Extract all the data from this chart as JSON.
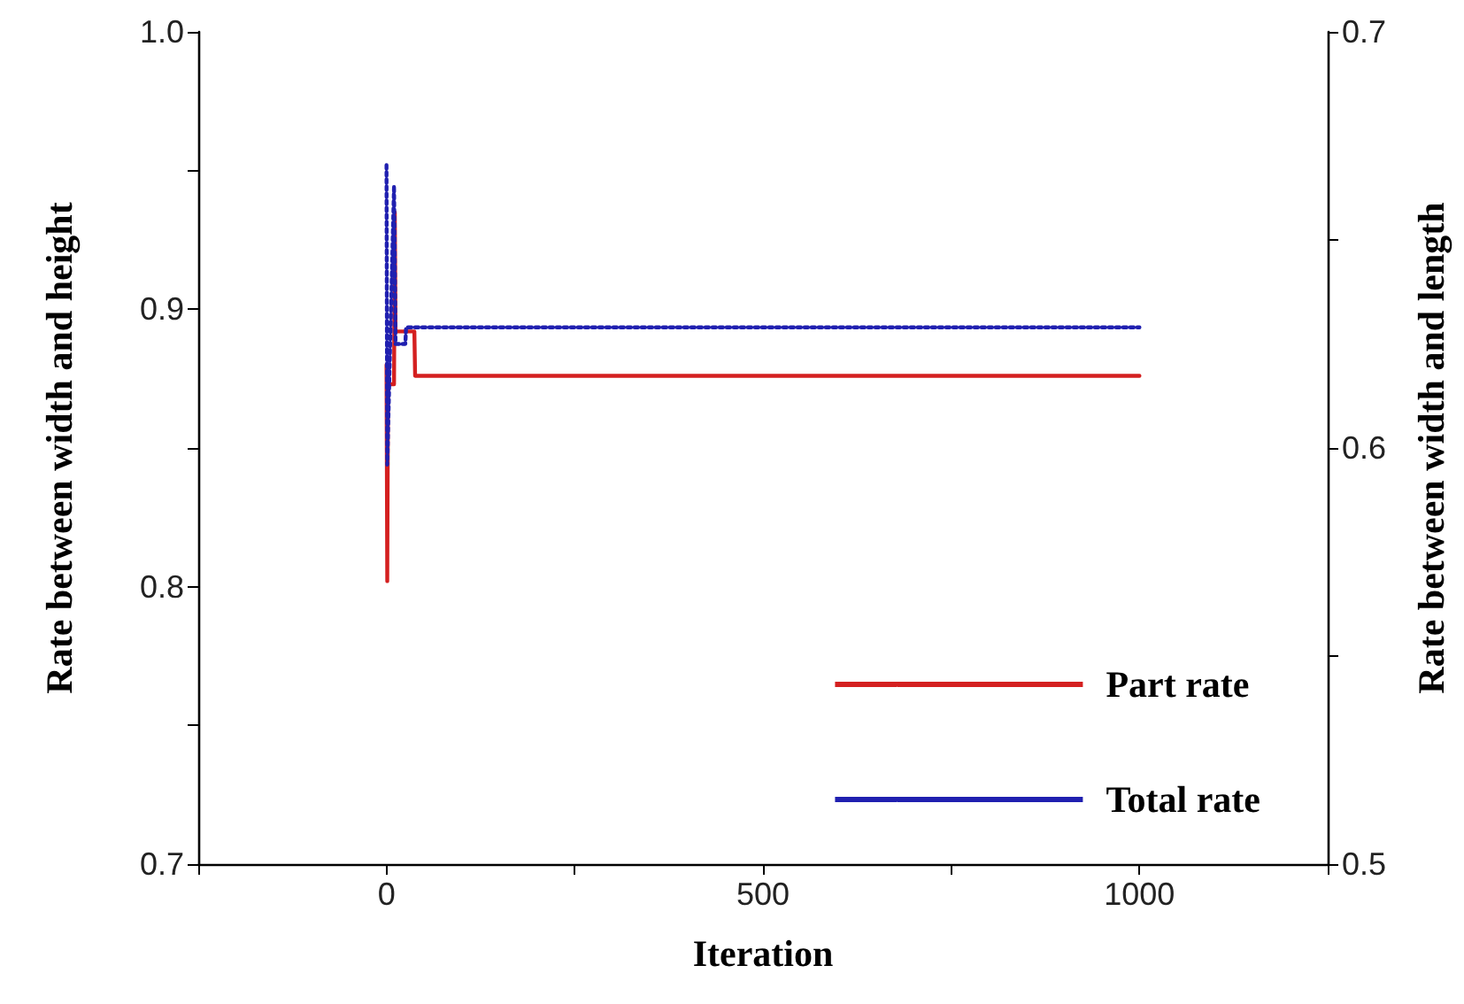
{
  "chart_data": {
    "type": "line",
    "xlabel": "Iteration",
    "ylabel": "Rate between width and height",
    "y2label": "Rate between width and length",
    "xlim": [
      -250,
      1250
    ],
    "xticks": [
      {
        "value": -250,
        "label": null
      },
      0,
      {
        "value": 250,
        "label": null
      },
      500,
      {
        "value": 750,
        "label": null
      },
      1000,
      {
        "value": 1250,
        "label": null
      }
    ],
    "ylim": [
      0.7,
      1.0
    ],
    "yticks": [
      0.7,
      {
        "value": 0.75,
        "label": null
      },
      0.8,
      {
        "value": 0.85,
        "label": null
      },
      0.9,
      {
        "value": 0.95,
        "label": null
      },
      {
        "value": 1.0,
        "label": "1.0"
      }
    ],
    "y2lim": [
      0.5,
      0.7
    ],
    "y2ticks": [
      0.5,
      {
        "value": 0.55,
        "label": null
      },
      0.6,
      {
        "value": 0.65,
        "label": null
      },
      0.7
    ],
    "grid": false,
    "legend": "bottom right",
    "marker": "none",
    "series": [
      {
        "name": "Part rate",
        "color": "#d42020",
        "line_style": "solid",
        "x": [
          0,
          1,
          2,
          10,
          11,
          12,
          37,
          38,
          1000
        ],
        "values": [
          0.88,
          0.802,
          0.873,
          0.873,
          0.935,
          0.892,
          0.892,
          0.876,
          0.876
        ]
      },
      {
        "name": "Total rate",
        "color": "#2020b0",
        "line_style": "dotted",
        "axis": "y2",
        "x": [
          0,
          1,
          10,
          12,
          25,
          26,
          1000
        ],
        "values": [
          0.668,
          0.596,
          0.663,
          0.625,
          0.625,
          0.629,
          0.629
        ]
      }
    ]
  }
}
